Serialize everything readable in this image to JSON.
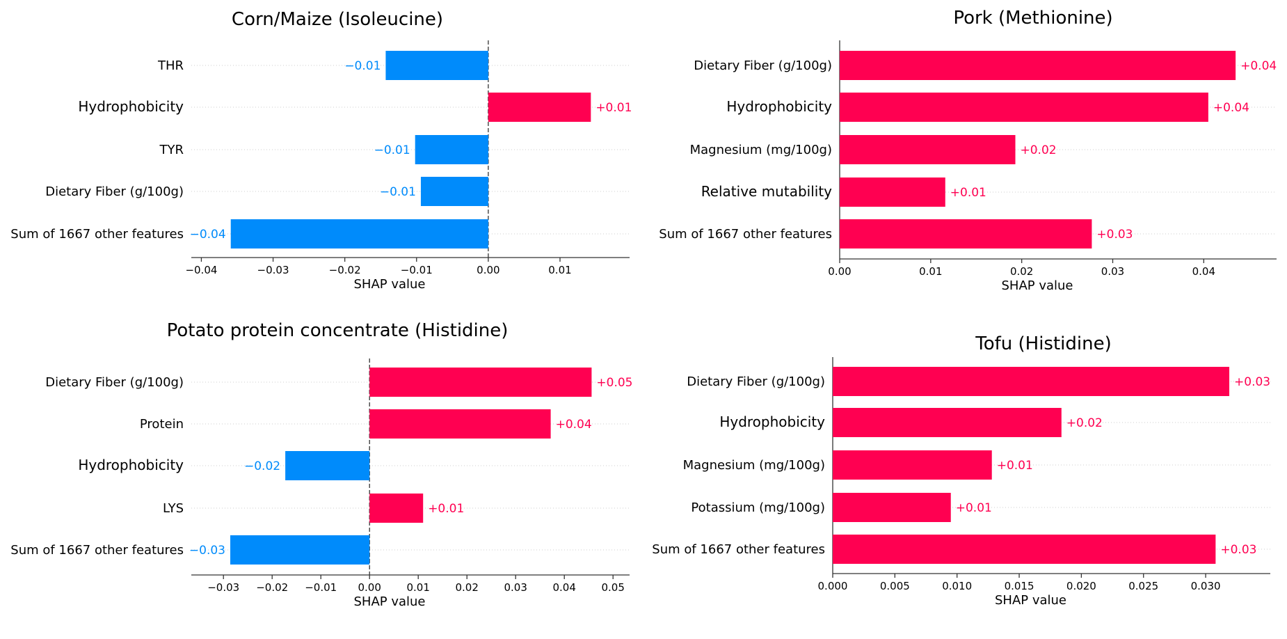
{
  "colors": {
    "positive": "#ff0051",
    "negative": "#008bfb",
    "axis": "#333333",
    "grid": "#cccccc",
    "text": "#000000"
  },
  "chart_data": [
    {
      "type": "bar",
      "orientation": "horizontal",
      "title": "Corn/Maize  (Isoleucine)",
      "xlabel": "SHAP value",
      "categories": [
        "THR",
        "Hydrophobicity",
        "TYR",
        "Dietary Fiber (g/100g)",
        "Sum of 1667 other features"
      ],
      "values": [
        -0.0143,
        0.0143,
        -0.0102,
        -0.0094,
        -0.0359
      ],
      "labels": [
        "−0.01",
        "+0.01",
        "−0.01",
        "−0.01",
        "−0.04"
      ],
      "xlim": [
        -0.0414,
        0.0197
      ],
      "xticks": [
        -0.04,
        -0.03,
        -0.02,
        -0.01,
        0.0,
        0.01
      ],
      "xtick_labels": [
        "−0.04",
        "−0.03",
        "−0.02",
        "−0.01",
        "0.00",
        "0.01"
      ]
    },
    {
      "type": "bar",
      "orientation": "horizontal",
      "title": "Pork (Methionine)",
      "xlabel": "SHAP value",
      "categories": [
        "Dietary Fiber (g/100g)",
        "Hydrophobicity",
        "Magnesium (mg/100g)",
        "Relative mutability",
        "Sum of 1667 other features"
      ],
      "values": [
        0.0435,
        0.0405,
        0.0193,
        0.0116,
        0.0277
      ],
      "labels": [
        "+0.04",
        "+0.04",
        "+0.02",
        "+0.01",
        "+0.03"
      ],
      "xlim": [
        0.0,
        0.048
      ],
      "xticks": [
        0.0,
        0.01,
        0.02,
        0.03,
        0.04
      ],
      "xtick_labels": [
        "0.00",
        "0.01",
        "0.02",
        "0.03",
        "0.04"
      ]
    },
    {
      "type": "bar",
      "orientation": "horizontal",
      "title": "Potato protein concentrate (Histidine)",
      "xlabel": "SHAP value",
      "categories": [
        "Dietary Fiber (g/100g)",
        "Protein",
        "Hydrophobicity",
        "LYS",
        "Sum of 1667 other features"
      ],
      "values": [
        0.0456,
        0.0372,
        -0.0173,
        0.011,
        -0.0286
      ],
      "labels": [
        "+0.05",
        "+0.04",
        "−0.02",
        "+0.01",
        "−0.03"
      ],
      "xlim": [
        -0.0366,
        0.0534
      ],
      "xticks": [
        -0.03,
        -0.02,
        -0.01,
        0.0,
        0.01,
        0.02,
        0.03,
        0.04,
        0.05
      ],
      "xtick_labels": [
        "−0.03",
        "−0.02",
        "−0.01",
        "0.00",
        "0.01",
        "0.02",
        "0.03",
        "0.04",
        "0.05"
      ]
    },
    {
      "type": "bar",
      "orientation": "horizontal",
      "title": "Tofu (Histidine)",
      "xlabel": "SHAP value",
      "categories": [
        "Dietary Fiber (g/100g)",
        "Hydrophobicity",
        "Magnesium (mg/100g)",
        "Potassium (mg/100g)",
        "Sum of 1667 other features"
      ],
      "values": [
        0.0319,
        0.0184,
        0.0128,
        0.0095,
        0.0308
      ],
      "labels": [
        "+0.03",
        "+0.02",
        "+0.01",
        "+0.01",
        "+0.03"
      ],
      "xlim": [
        0.0,
        0.0352
      ],
      "xticks": [
        0.0,
        0.005,
        0.01,
        0.015,
        0.02,
        0.025,
        0.03
      ],
      "xtick_labels": [
        "0.000",
        "0.005",
        "0.010",
        "0.015",
        "0.020",
        "0.025",
        "0.030"
      ]
    }
  ]
}
